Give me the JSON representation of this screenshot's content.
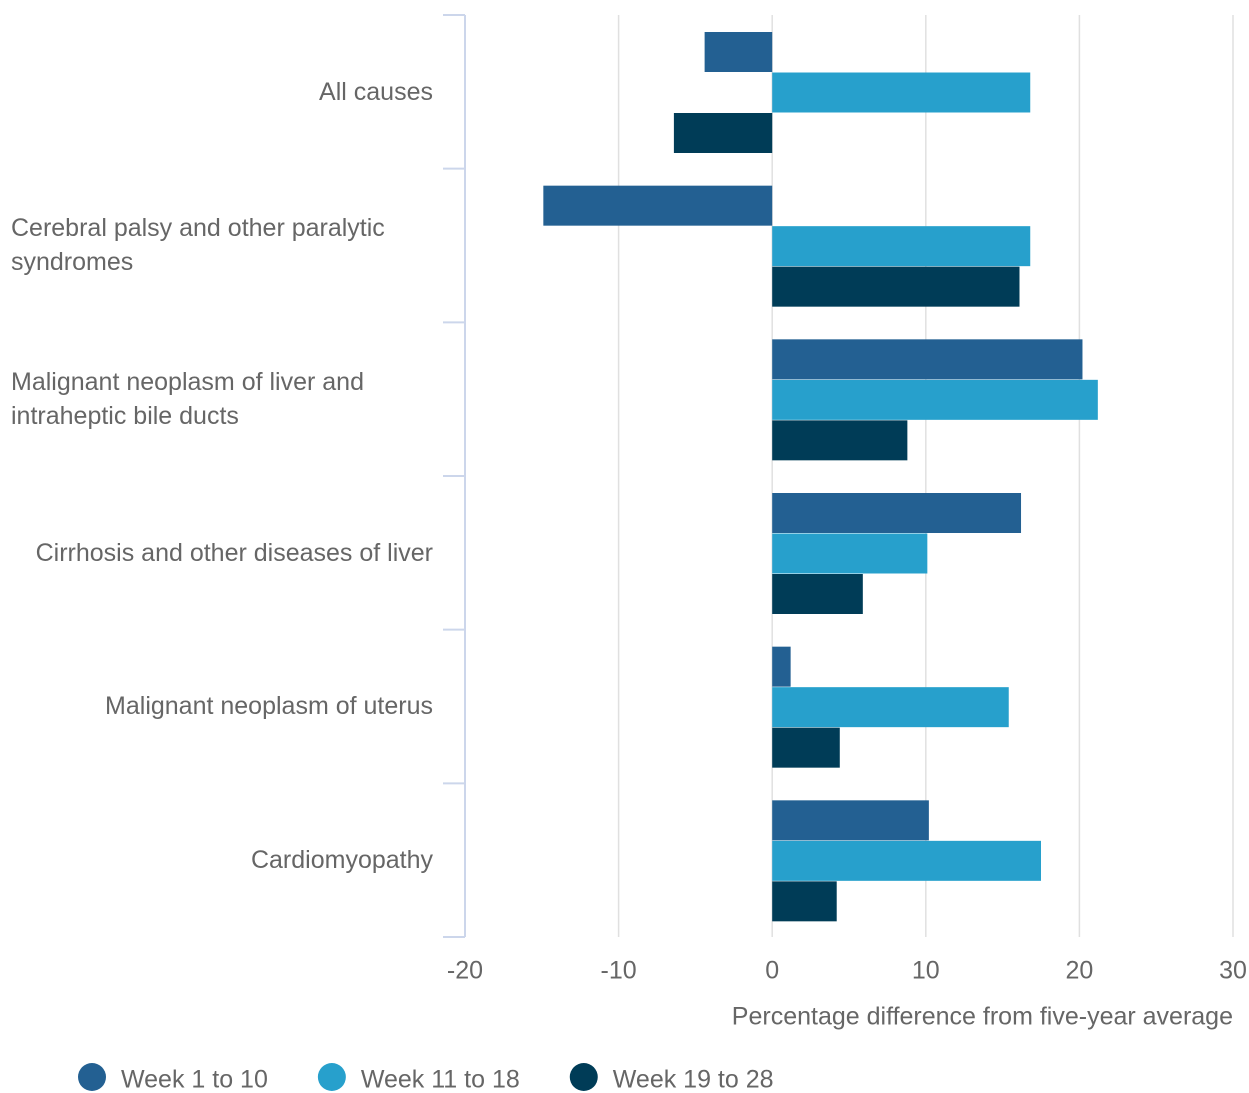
{
  "chart_data": {
    "type": "bar",
    "orientation": "horizontal",
    "categories": [
      "All causes",
      "Cerebral palsy and other paralytic syndromes",
      "Malignant neoplasm of liver and intraheptic bile ducts",
      "Cirrhosis and other diseases of liver",
      "Malignant neoplasm of uterus",
      "Cardiomyopathy"
    ],
    "series": [
      {
        "name": "Week 1 to 10",
        "color": "#236092",
        "values": [
          -4.4,
          -14.9,
          20.2,
          16.2,
          1.2,
          10.2
        ]
      },
      {
        "name": "Week 11 to 18",
        "color": "#27a0cc",
        "values": [
          16.8,
          16.8,
          21.2,
          10.1,
          15.4,
          17.5
        ]
      },
      {
        "name": "Week 19 to 28",
        "color": "#003c57",
        "values": [
          -6.4,
          16.1,
          8.8,
          5.9,
          4.4,
          4.2
        ]
      }
    ],
    "x_label": "Percentage difference from five-year average",
    "xlim": [
      -20,
      30
    ],
    "xticks": [
      -20,
      -10,
      0,
      10,
      20,
      30
    ],
    "grid": true,
    "legend": "bottom-left"
  }
}
